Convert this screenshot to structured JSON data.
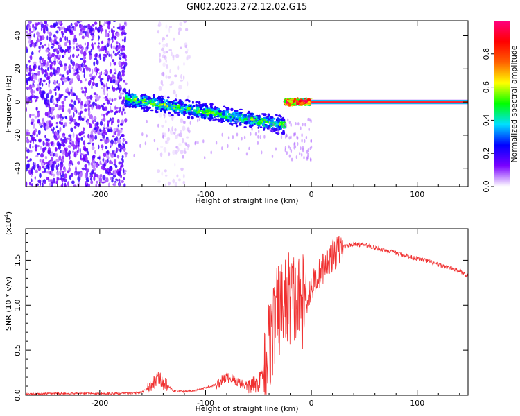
{
  "title": "GN02.2023.272.12.02.G15",
  "colors": {
    "snr_line": "#f03030",
    "axis": "#000000"
  },
  "chart_data": [
    {
      "type": "heatmap",
      "title": "GN02.2023.272.12.02.G15",
      "xlabel": "Height of straight line (km)",
      "ylabel": "Frequency (Hz)",
      "xlim": [
        -270,
        148
      ],
      "ylim": [
        -51,
        49
      ],
      "x_ticks": [
        -200,
        -100,
        0,
        100
      ],
      "y_ticks": [
        -40,
        -20,
        0,
        20,
        40
      ],
      "grid": false,
      "colorbar": {
        "label": "Normalized spectral amplitude",
        "range": [
          0,
          1
        ],
        "ticks": [
          "0.0",
          "0.2",
          "0.4",
          "0.6",
          "0.8"
        ],
        "tick_values": [
          0.0,
          0.2,
          0.4,
          0.6,
          0.8
        ],
        "colormap": [
          "#ffffff",
          "#7a00ff",
          "#0000ff",
          "#00e0ff",
          "#00ff00",
          "#ffff00",
          "#ff6000",
          "#ff0000",
          "#ff0080"
        ]
      },
      "regions": [
        {
          "name": "noise",
          "x": [
            -270,
            -175
          ],
          "freq": [
            -51,
            49
          ],
          "amplitude": 0.15
        },
        {
          "name": "sparse noise",
          "x": [
            -145,
            -115
          ],
          "freq": [
            -51,
            49
          ],
          "amplitude": 0.05
        },
        {
          "name": "signal band",
          "x": [
            -175,
            -25
          ],
          "freq_center": [
            2,
            -14
          ],
          "amplitude": 0.45
        },
        {
          "name": "signal band",
          "x": [
            -25,
            0
          ],
          "freq_center": [
            0,
            0
          ],
          "amplitude": 0.8
        },
        {
          "name": "clean tone",
          "x": [
            0,
            148
          ],
          "freq_center": [
            0,
            0
          ],
          "amplitude": 0.95
        }
      ]
    },
    {
      "type": "line",
      "xlabel": "Height of straight line (km)",
      "ylabel": "SNR (10 * v/v)",
      "y_multiplier": "(x10^4)",
      "xlim": [
        -270,
        148
      ],
      "ylim": [
        0,
        1.85
      ],
      "x_ticks": [
        -200,
        -100,
        0,
        100
      ],
      "y_ticks": [
        "0.0",
        "0.5",
        "1.0",
        "1.5"
      ],
      "y_tick_values": [
        0.0,
        0.5,
        1.0,
        1.5
      ],
      "grid": false,
      "series": [
        {
          "color": "#f03030",
          "x": [
            -270,
            -240,
            -210,
            -180,
            -160,
            -150,
            -145,
            -140,
            -130,
            -120,
            -110,
            -100,
            -90,
            -80,
            -75,
            -70,
            -60,
            -50,
            -45,
            -40,
            -35,
            -30,
            -25,
            -20,
            -15,
            -10,
            -5,
            0,
            10,
            20,
            30,
            40,
            50,
            60,
            70,
            80,
            90,
            100,
            110,
            120,
            130,
            140,
            148
          ],
          "y": [
            0.01,
            0.02,
            0.02,
            0.02,
            0.03,
            0.12,
            0.2,
            0.14,
            0.05,
            0.04,
            0.05,
            0.08,
            0.12,
            0.2,
            0.18,
            0.15,
            0.1,
            0.13,
            0.3,
            0.55,
            0.8,
            0.95,
            1.05,
            1.1,
            1.05,
            1.0,
            1.05,
            1.2,
            1.4,
            1.55,
            1.65,
            1.68,
            1.67,
            1.64,
            1.61,
            1.58,
            1.55,
            1.52,
            1.49,
            1.45,
            1.42,
            1.38,
            1.33
          ]
        }
      ]
    }
  ]
}
